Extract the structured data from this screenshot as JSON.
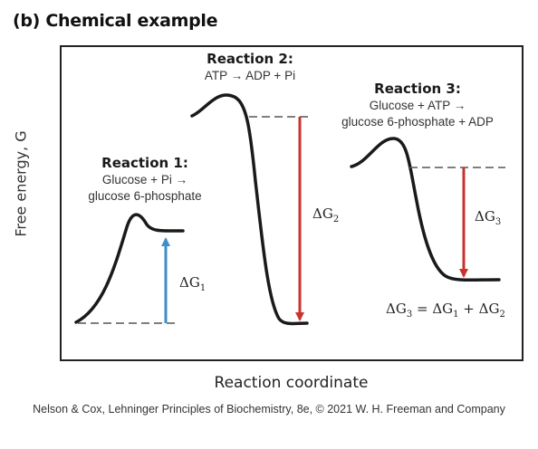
{
  "panel": {
    "title": "(b) Chemical example"
  },
  "axes": {
    "y_label": "Free energy, G",
    "x_label": "Reaction coordinate"
  },
  "reaction1": {
    "title": "Reaction 1:",
    "line1": "Glucose + Pi →",
    "line2": "glucose 6-phosphate",
    "delta": {
      "symbol": "ΔG",
      "sub": "1"
    }
  },
  "reaction2": {
    "title": "Reaction 2:",
    "line1": "ATP → ADP + Pi",
    "delta": {
      "symbol": "ΔG",
      "sub": "2"
    }
  },
  "reaction3": {
    "title": "Reaction 3:",
    "line1": "Glucose + ATP →",
    "line2": "glucose 6-phosphate + ADP",
    "delta": {
      "symbol": "ΔG",
      "sub": "3"
    }
  },
  "sum_equation": {
    "lhs": {
      "symbol": "ΔG",
      "sub": "3"
    },
    "eq": " = ",
    "t1": {
      "symbol": "ΔG",
      "sub": "1"
    },
    "plus": " + ",
    "t2": {
      "symbol": "ΔG",
      "sub": "2"
    }
  },
  "colors": {
    "arrow_up": "#3d8fc9",
    "arrow_down": "#c8342d",
    "curve": "#1a1a1a",
    "dashed": "#555555",
    "frame": "#222222"
  },
  "credit": "Nelson & Cox, Lehninger Principles of Biochemistry, 8e, © 2021 W. H. Freeman and Company"
}
